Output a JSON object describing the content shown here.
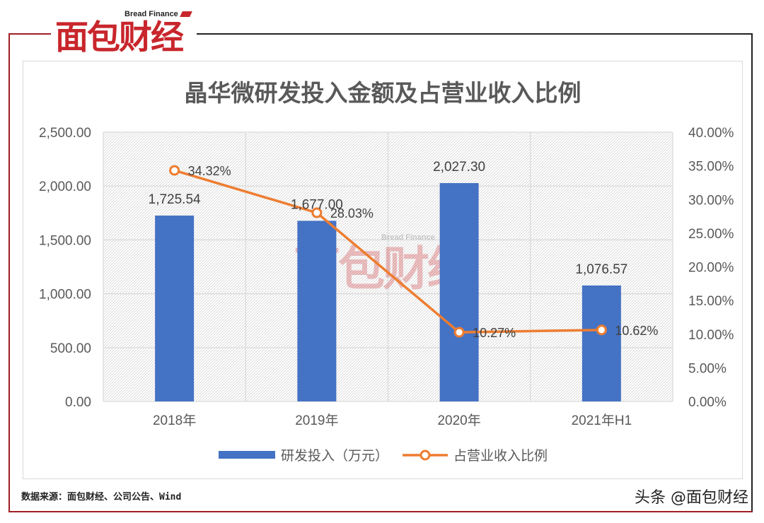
{
  "brand": {
    "logo_en": "Bread Finance",
    "logo_cn": "面包财经",
    "watermark_en": "Bread Finance",
    "watermark_cn": "面包财经",
    "color": "#c8262c"
  },
  "footer": {
    "source": "数据来源：面包财经、公司公告、Wind",
    "brand": "头条 @面包财经"
  },
  "chart_data": {
    "type": "bar",
    "title": "晶华微研发投入金额及占营业收入比例",
    "categories": [
      "2018年",
      "2019年",
      "2020年",
      "2021年H1"
    ],
    "series": [
      {
        "name": "研发投入（万元）",
        "type": "bar",
        "axis": "left",
        "color": "#4472c4",
        "values": [
          1725.54,
          1677.0,
          2027.3,
          1076.57
        ],
        "labels": [
          "1,725.54",
          "1,677.00",
          "2,027.30",
          "1,076.57"
        ]
      },
      {
        "name": "占营业收入比例",
        "type": "line",
        "axis": "right",
        "color": "#ed7d31",
        "values": [
          34.32,
          28.03,
          10.27,
          10.62
        ],
        "labels": [
          "34.32%",
          "28.03%",
          "10.27%",
          "10.62%"
        ]
      }
    ],
    "ylim_left": [
      0,
      2500
    ],
    "ylim_right": [
      0,
      40
    ],
    "left_ticks": [
      "0.00",
      "500.00",
      "1,000.00",
      "1,500.00",
      "2,000.00",
      "2,500.00"
    ],
    "right_ticks": [
      "0.00%",
      "5.00%",
      "10.00%",
      "15.00%",
      "20.00%",
      "25.00%",
      "30.00%",
      "35.00%",
      "40.00%"
    ],
    "grid": true,
    "legend_position": "bottom"
  }
}
